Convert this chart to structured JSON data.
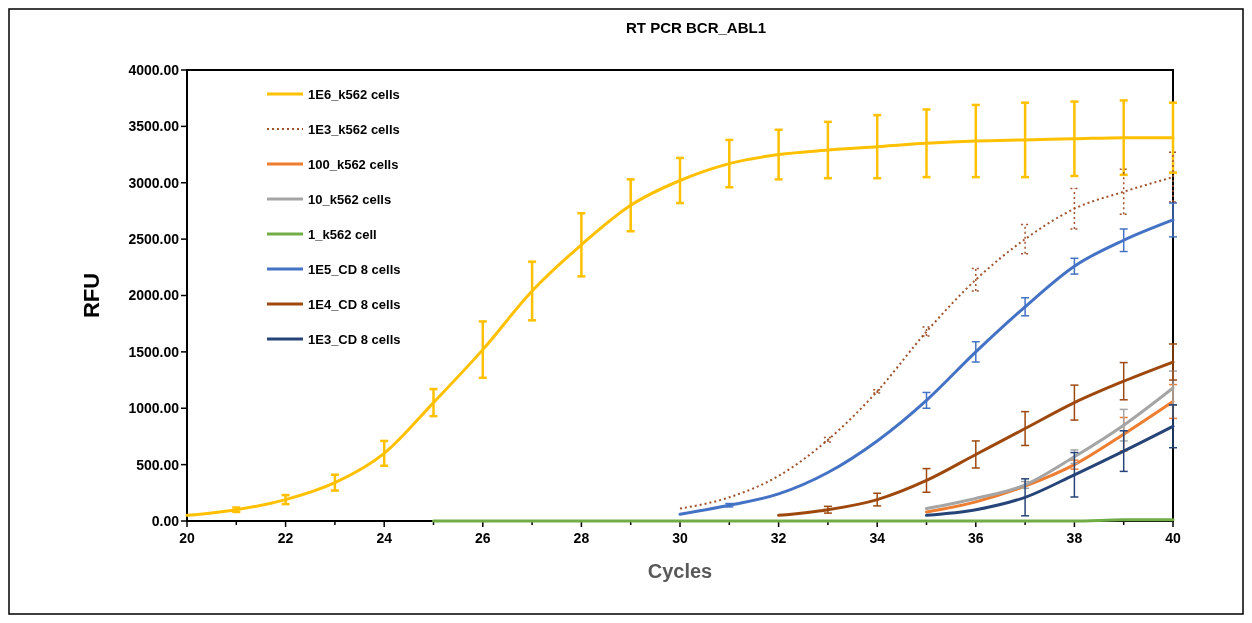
{
  "chart_data": {
    "type": "line",
    "title": "RT PCR BCR_ABL1",
    "xlabel": "Cycles",
    "ylabel": "RFU",
    "x": [
      20,
      21,
      22,
      23,
      24,
      25,
      26,
      27,
      28,
      29,
      30,
      31,
      32,
      33,
      34,
      35,
      36,
      37,
      38,
      39,
      40
    ],
    "xlim": [
      20,
      40
    ],
    "xticks": [
      20,
      {
        "value": 21,
        "label": null
      },
      22,
      {
        "value": 23,
        "label": null
      },
      24,
      {
        "value": 25,
        "label": null
      },
      26,
      {
        "value": 27,
        "label": null
      },
      28,
      {
        "value": 29,
        "label": null
      },
      30,
      {
        "value": 31,
        "label": null
      },
      32,
      {
        "value": 33,
        "label": null
      },
      34,
      {
        "value": 35,
        "label": null
      },
      36,
      {
        "value": 37,
        "label": null
      },
      38,
      {
        "value": 39,
        "label": null
      },
      40
    ],
    "ylim": [
      0,
      4000
    ],
    "yticks": [
      {
        "value": 0,
        "label": "0.00"
      },
      {
        "value": 500,
        "label": "500.00"
      },
      {
        "value": 1000,
        "label": "1000.00"
      },
      {
        "value": 1500,
        "label": "1500.00"
      },
      {
        "value": 2000,
        "label": "2000.00"
      },
      {
        "value": 2500,
        "label": "2500.00"
      },
      {
        "value": 3000,
        "label": "3000.00"
      },
      {
        "value": 3500,
        "label": "3500.00"
      },
      {
        "value": 4000,
        "label": "4000.00"
      }
    ],
    "grid": false,
    "legend": "top left",
    "marker": "none",
    "series": [
      {
        "name": "1E6_k562 cells",
        "color": "#ffc000",
        "values": [
          50,
          100,
          190,
          340,
          600,
          1050,
          1520,
          2040,
          2450,
          2800,
          3020,
          3170,
          3250,
          3290,
          3320,
          3350,
          3370,
          3380,
          3390,
          3400,
          3400
        ],
        "errors": [
          null,
          20,
          40,
          70,
          110,
          120,
          250,
          260,
          280,
          230,
          200,
          210,
          220,
          250,
          280,
          300,
          320,
          330,
          330,
          330,
          310
        ]
      },
      {
        "name": "1E3_k562 cells",
        "color": "#a0522d",
        "line_style": "dotted",
        "values": [
          null,
          null,
          null,
          null,
          null,
          null,
          null,
          null,
          null,
          null,
          110,
          210,
          400,
          720,
          1150,
          1680,
          2140,
          2500,
          2770,
          2920,
          3050
        ],
        "errors": [
          null,
          null,
          null,
          null,
          null,
          null,
          null,
          null,
          null,
          null,
          null,
          null,
          null,
          20,
          15,
          40,
          100,
          130,
          180,
          200,
          220
        ]
      },
      {
        "name": "100_k562 cells",
        "color": "#ed7d31",
        "values": [
          null,
          null,
          null,
          null,
          null,
          null,
          null,
          null,
          null,
          null,
          null,
          null,
          null,
          null,
          null,
          80,
          170,
          310,
          500,
          770,
          1060
        ],
        "errors": [
          null,
          null,
          null,
          null,
          null,
          null,
          null,
          null,
          null,
          null,
          null,
          null,
          null,
          null,
          null,
          null,
          null,
          null,
          40,
          148,
          150
        ]
      },
      {
        "name": "10_k562 cells",
        "color": "#a5a5a5",
        "values": [
          null,
          null,
          null,
          null,
          null,
          null,
          null,
          null,
          null,
          null,
          null,
          null,
          null,
          null,
          null,
          110,
          200,
          320,
          570,
          850,
          1180
        ],
        "errors": [
          null,
          null,
          null,
          null,
          null,
          null,
          null,
          null,
          null,
          null,
          null,
          null,
          null,
          null,
          null,
          null,
          null,
          30,
          60,
          140,
          150
        ]
      },
      {
        "name": "1_k562 cell",
        "color": "#70ad47",
        "values": [
          null,
          null,
          null,
          null,
          null,
          0,
          0,
          0,
          0,
          0,
          0,
          0,
          0,
          0,
          0,
          0,
          0,
          0,
          0,
          10,
          10
        ]
      },
      {
        "name": "1E5_CD 8 cells",
        "color": "#4472c4",
        "values": [
          null,
          null,
          null,
          null,
          null,
          null,
          null,
          null,
          null,
          null,
          60,
          140,
          240,
          430,
          710,
          1070,
          1500,
          1900,
          2260,
          2490,
          2670
        ],
        "errors": [
          null,
          null,
          null,
          null,
          null,
          null,
          null,
          null,
          null,
          null,
          null,
          15,
          null,
          null,
          null,
          70,
          90,
          80,
          70,
          100,
          150
        ]
      },
      {
        "name": "1E4_CD 8 cells",
        "color": "#9e480e",
        "values": [
          null,
          null,
          null,
          null,
          null,
          null,
          null,
          null,
          null,
          null,
          null,
          null,
          50,
          100,
          190,
          360,
          590,
          820,
          1050,
          1240,
          1410
        ],
        "errors": [
          null,
          null,
          null,
          null,
          null,
          null,
          null,
          null,
          null,
          null,
          null,
          null,
          null,
          30,
          56,
          105,
          120,
          150,
          155,
          165,
          160
        ]
      },
      {
        "name": "1E3_CD 8 cells",
        "color": "#264478",
        "values": [
          null,
          null,
          null,
          null,
          null,
          null,
          null,
          null,
          null,
          null,
          null,
          null,
          null,
          null,
          null,
          50,
          100,
          210,
          410,
          620,
          840
        ],
        "errors": [
          null,
          null,
          null,
          null,
          null,
          null,
          null,
          null,
          null,
          null,
          null,
          null,
          null,
          null,
          null,
          null,
          null,
          164,
          197,
          180,
          190
        ]
      }
    ]
  }
}
